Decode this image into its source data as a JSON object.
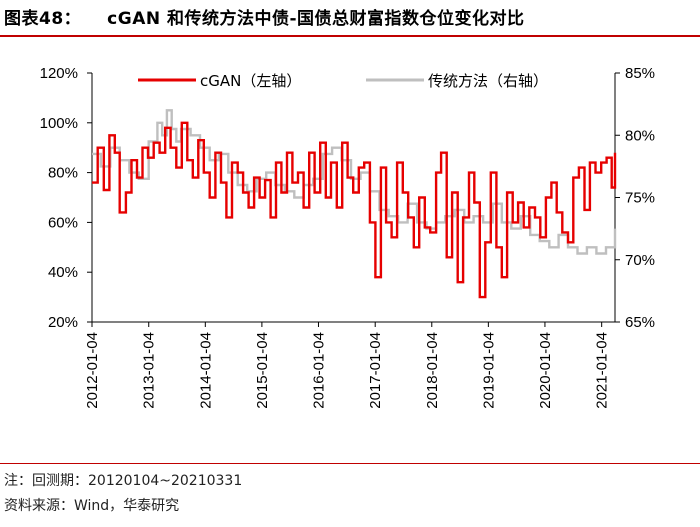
{
  "header": {
    "figure_label": "图表48：",
    "title": "cGAN 和传统方法中债-国债总财富指数仓位变化对比"
  },
  "footer": {
    "note": "注：回测期：20120104~20210331",
    "source": "资料来源：Wind，华泰研究"
  },
  "colors": {
    "cgan": "#e60000",
    "traditional": "#bfbfbf",
    "rule": "#c00000"
  },
  "chart_data": {
    "type": "line",
    "x_tick_labels": [
      "2012-01-04",
      "2013-01-04",
      "2014-01-04",
      "2015-01-04",
      "2016-01-04",
      "2017-01-04",
      "2018-01-04",
      "2019-01-04",
      "2020-01-04",
      "2021-01-04"
    ],
    "x_range": [
      "2012-01-04",
      "2021-03-31"
    ],
    "y_left": {
      "ticks": [
        "20%",
        "40%",
        "60%",
        "80%",
        "100%",
        "120%"
      ],
      "range": [
        20,
        120
      ]
    },
    "y_right": {
      "ticks": [
        "65%",
        "70%",
        "75%",
        "80%",
        "85%"
      ],
      "range": [
        65,
        85
      ]
    },
    "legend_position": "top",
    "series": [
      {
        "name": "cGAN（左轴）",
        "axis": "left",
        "style": "step",
        "x": [
          "2012-01-04",
          "2012-02-10",
          "2012-03-20",
          "2012-04-25",
          "2012-05-30",
          "2012-07-01",
          "2012-08-10",
          "2012-09-15",
          "2012-10-20",
          "2012-11-25",
          "2012-12-30",
          "2013-02-05",
          "2013-03-15",
          "2013-04-20",
          "2013-05-25",
          "2013-07-01",
          "2013-08-05",
          "2013-09-10",
          "2013-10-15",
          "2013-11-20",
          "2013-12-25",
          "2014-02-01",
          "2014-03-10",
          "2014-04-15",
          "2014-05-20",
          "2014-06-25",
          "2014-08-01",
          "2014-09-05",
          "2014-10-10",
          "2014-11-15",
          "2014-12-20",
          "2015-01-25",
          "2015-03-01",
          "2015-04-05",
          "2015-05-10",
          "2015-06-15",
          "2015-07-20",
          "2015-08-25",
          "2015-09-30",
          "2015-11-05",
          "2015-12-10",
          "2016-01-15",
          "2016-02-20",
          "2016-03-25",
          "2016-05-01",
          "2016-06-05",
          "2016-07-10",
          "2016-08-15",
          "2016-09-20",
          "2016-10-25",
          "2016-12-01",
          "2017-01-05",
          "2017-02-10",
          "2017-03-15",
          "2017-04-20",
          "2017-05-25",
          "2017-07-01",
          "2017-08-05",
          "2017-09-10",
          "2017-10-15",
          "2017-11-20",
          "2017-12-25",
          "2018-02-01",
          "2018-03-05",
          "2018-04-10",
          "2018-05-15",
          "2018-06-20",
          "2018-07-25",
          "2018-09-01",
          "2018-10-05",
          "2018-11-10",
          "2018-12-15",
          "2019-01-20",
          "2019-02-25",
          "2019-04-01",
          "2019-05-05",
          "2019-06-10",
          "2019-07-15",
          "2019-08-20",
          "2019-09-25",
          "2019-11-01",
          "2019-12-05",
          "2020-01-10",
          "2020-02-15",
          "2020-03-20",
          "2020-04-25",
          "2020-06-01",
          "2020-07-05",
          "2020-08-10",
          "2020-09-15",
          "2020-10-20",
          "2020-11-25",
          "2021-01-01",
          "2021-02-05",
          "2021-03-10",
          "2021-03-31"
        ],
        "y": [
          76,
          90,
          73,
          95,
          88,
          64,
          72,
          85,
          78,
          90,
          86,
          92,
          88,
          98,
          90,
          82,
          100,
          85,
          78,
          93,
          80,
          70,
          88,
          76,
          62,
          84,
          80,
          72,
          66,
          78,
          70,
          77,
          62,
          84,
          72,
          88,
          76,
          80,
          66,
          88,
          72,
          92,
          70,
          84,
          66,
          92,
          78,
          72,
          82,
          84,
          60,
          38,
          82,
          60,
          54,
          84,
          72,
          62,
          50,
          70,
          58,
          56,
          80,
          88,
          46,
          72,
          36,
          62,
          80,
          68,
          30,
          52,
          80,
          50,
          38,
          72,
          60,
          68,
          58,
          66,
          62,
          54,
          70,
          76,
          64,
          56,
          52,
          78,
          82,
          65,
          84,
          80,
          84,
          86,
          74,
          88
        ]
      },
      {
        "name": "传统方法（右轴）",
        "axis": "right",
        "style": "step",
        "x": [
          "2012-01-04",
          "2012-03-01",
          "2012-05-01",
          "2012-07-01",
          "2012-09-01",
          "2012-11-01",
          "2013-01-04",
          "2013-03-01",
          "2013-04-01",
          "2013-05-01",
          "2013-06-01",
          "2013-07-01",
          "2013-08-01",
          "2013-10-01",
          "2013-12-01",
          "2014-02-01",
          "2014-04-01",
          "2014-06-01",
          "2014-08-01",
          "2014-10-01",
          "2014-12-01",
          "2015-02-01",
          "2015-04-01",
          "2015-06-01",
          "2015-08-01",
          "2015-10-01",
          "2015-12-01",
          "2016-02-01",
          "2016-04-01",
          "2016-06-01",
          "2016-08-01",
          "2016-10-01",
          "2016-12-01",
          "2017-02-01",
          "2017-04-01",
          "2017-06-01",
          "2017-08-01",
          "2017-10-01",
          "2017-12-01",
          "2018-02-01",
          "2018-04-01",
          "2018-06-01",
          "2018-08-01",
          "2018-10-01",
          "2018-12-01",
          "2019-02-01",
          "2019-04-01",
          "2019-06-01",
          "2019-08-01",
          "2019-10-01",
          "2019-12-01",
          "2020-02-01",
          "2020-04-01",
          "2020-06-01",
          "2020-08-01",
          "2020-10-01",
          "2020-12-01",
          "2021-02-01",
          "2021-03-31"
        ],
        "y": [
          78.5,
          77.5,
          79,
          78,
          77,
          76.5,
          79.5,
          81,
          80,
          82,
          80.5,
          79.5,
          80.5,
          80,
          79,
          78,
          78.5,
          77,
          76,
          75.5,
          76.5,
          77,
          76,
          75.5,
          75,
          76,
          76.5,
          78.5,
          79,
          78,
          76.5,
          77,
          75.5,
          74,
          73.5,
          73,
          74.5,
          73,
          72.5,
          73,
          73.5,
          74,
          73,
          73.5,
          73,
          74.5,
          73,
          72.5,
          73.5,
          72,
          71.5,
          71,
          72,
          71,
          70.5,
          71,
          70.5,
          71,
          72.5
        ]
      }
    ]
  }
}
